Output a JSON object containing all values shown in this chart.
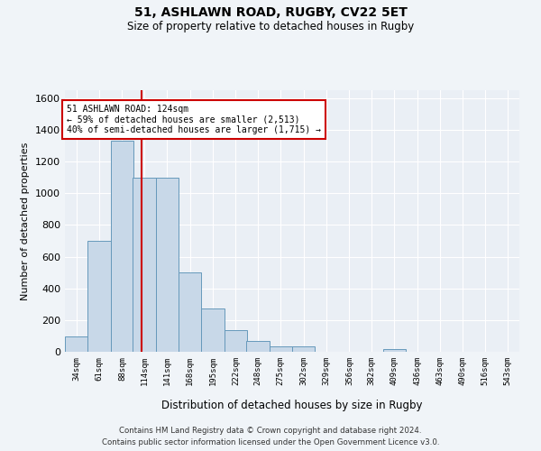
{
  "title1": "51, ASHLAWN ROAD, RUGBY, CV22 5ET",
  "title2": "Size of property relative to detached houses in Rugby",
  "xlabel": "Distribution of detached houses by size in Rugby",
  "ylabel": "Number of detached properties",
  "bar_color": "#c8d8e8",
  "bar_edge_color": "#6699bb",
  "annotation_line_color": "#cc0000",
  "annotation_box_color": "#cc0000",
  "annotation_line1": "51 ASHLAWN ROAD: 124sqm",
  "annotation_line2": "← 59% of detached houses are smaller (2,513)",
  "annotation_line3": "40% of semi-detached houses are larger (1,715) →",
  "property_size_sqm": 124,
  "bin_edges": [
    34,
    61,
    88,
    114,
    141,
    168,
    195,
    222,
    248,
    275,
    302,
    329,
    356,
    382,
    409,
    436,
    463,
    490,
    516,
    543,
    570
  ],
  "bar_heights": [
    95,
    700,
    1330,
    1100,
    1100,
    500,
    275,
    135,
    70,
    35,
    35,
    0,
    0,
    0,
    15,
    0,
    0,
    0,
    0,
    0
  ],
  "xlim_left": 34,
  "xlim_right": 570,
  "ylim_top": 1650,
  "yticks": [
    0,
    200,
    400,
    600,
    800,
    1000,
    1200,
    1400,
    1600
  ],
  "footer_text": "Contains HM Land Registry data © Crown copyright and database right 2024.\nContains public sector information licensed under the Open Government Licence v3.0.",
  "background_color": "#f0f4f8",
  "plot_background_color": "#eaeff5"
}
